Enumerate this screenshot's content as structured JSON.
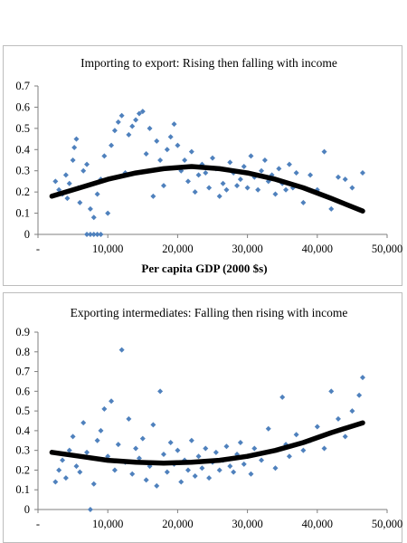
{
  "chart_data": [
    {
      "type": "scatter",
      "title": "Importing to export: Rising then falling with income",
      "xlabel": "Per capita GDP (2000 $s)",
      "ylabel": "",
      "xlim": [
        0,
        50000
      ],
      "ylim": [
        0,
        0.7
      ],
      "x_ticks": [
        "-",
        "10,000",
        "20,000",
        "30,000",
        "40,000",
        "50,000"
      ],
      "y_ticks": [
        "0",
        "0.1",
        "0.2",
        "0.3",
        "0.4",
        "0.5",
        "0.6",
        "0.7"
      ],
      "grid": false,
      "legend": "none",
      "marker_color": "#4f81bd",
      "trend_color": "#000000",
      "trend": {
        "x": [
          2000,
          6000,
          10000,
          14000,
          18000,
          22000,
          26000,
          30000,
          34000,
          38000,
          42000,
          46500
        ],
        "y": [
          0.18,
          0.22,
          0.26,
          0.29,
          0.31,
          0.32,
          0.31,
          0.29,
          0.26,
          0.22,
          0.17,
          0.11
        ]
      },
      "points": [
        [
          2500,
          0.25
        ],
        [
          3000,
          0.21
        ],
        [
          3500,
          0.19
        ],
        [
          4000,
          0.28
        ],
        [
          4200,
          0.17
        ],
        [
          4500,
          0.24
        ],
        [
          5000,
          0.35
        ],
        [
          5200,
          0.41
        ],
        [
          5500,
          0.45
        ],
        [
          5800,
          0.22
        ],
        [
          6000,
          0.15
        ],
        [
          6500,
          0.3
        ],
        [
          7000,
          0.0
        ],
        [
          7500,
          0.0
        ],
        [
          8000,
          0.0
        ],
        [
          8500,
          0.0
        ],
        [
          9000,
          0.0
        ],
        [
          7000,
          0.33
        ],
        [
          7500,
          0.12
        ],
        [
          8000,
          0.08
        ],
        [
          8500,
          0.19
        ],
        [
          9000,
          0.26
        ],
        [
          9500,
          0.37
        ],
        [
          10000,
          0.1
        ],
        [
          10500,
          0.42
        ],
        [
          11000,
          0.49
        ],
        [
          11500,
          0.53
        ],
        [
          12000,
          0.56
        ],
        [
          12500,
          0.29
        ],
        [
          13000,
          0.47
        ],
        [
          13500,
          0.51
        ],
        [
          14000,
          0.54
        ],
        [
          14500,
          0.57
        ],
        [
          15000,
          0.58
        ],
        [
          15500,
          0.38
        ],
        [
          16000,
          0.5
        ],
        [
          16500,
          0.18
        ],
        [
          17000,
          0.44
        ],
        [
          17500,
          0.35
        ],
        [
          18000,
          0.23
        ],
        [
          18500,
          0.4
        ],
        [
          19000,
          0.46
        ],
        [
          19500,
          0.52
        ],
        [
          20000,
          0.42
        ],
        [
          20500,
          0.3
        ],
        [
          21000,
          0.35
        ],
        [
          21500,
          0.25
        ],
        [
          22000,
          0.39
        ],
        [
          22500,
          0.2
        ],
        [
          23000,
          0.28
        ],
        [
          23500,
          0.33
        ],
        [
          24000,
          0.29
        ],
        [
          24500,
          0.22
        ],
        [
          25000,
          0.36
        ],
        [
          25500,
          0.31
        ],
        [
          26000,
          0.18
        ],
        [
          26500,
          0.24
        ],
        [
          27000,
          0.21
        ],
        [
          27500,
          0.34
        ],
        [
          28000,
          0.29
        ],
        [
          28500,
          0.23
        ],
        [
          29000,
          0.26
        ],
        [
          29500,
          0.32
        ],
        [
          30000,
          0.22
        ],
        [
          30500,
          0.37
        ],
        [
          31000,
          0.27
        ],
        [
          31500,
          0.21
        ],
        [
          32000,
          0.3
        ],
        [
          32500,
          0.35
        ],
        [
          33000,
          0.25
        ],
        [
          33500,
          0.28
        ],
        [
          34000,
          0.19
        ],
        [
          34500,
          0.31
        ],
        [
          35000,
          0.24
        ],
        [
          35500,
          0.21
        ],
        [
          36000,
          0.33
        ],
        [
          36500,
          0.22
        ],
        [
          37000,
          0.29
        ],
        [
          38000,
          0.15
        ],
        [
          39000,
          0.28
        ],
        [
          40000,
          0.21
        ],
        [
          41000,
          0.39
        ],
        [
          42000,
          0.12
        ],
        [
          43000,
          0.27
        ],
        [
          44000,
          0.26
        ],
        [
          45000,
          0.22
        ],
        [
          46500,
          0.29
        ]
      ]
    },
    {
      "type": "scatter",
      "title": "Exporting  intermediates: Falling then rising with income",
      "xlabel": "",
      "ylabel": "",
      "xlim": [
        0,
        50000
      ],
      "ylim": [
        0,
        0.9
      ],
      "x_ticks": [
        "-",
        "10,000",
        "20,000",
        "30,000",
        "40,000",
        "50,000"
      ],
      "y_ticks": [
        "0",
        "0.1",
        "0.2",
        "0.3",
        "0.4",
        "0.5",
        "0.6",
        "0.7",
        "0.8",
        "0.9"
      ],
      "grid": false,
      "legend": "none",
      "marker_color": "#4f81bd",
      "trend_color": "#000000",
      "trend": {
        "x": [
          2000,
          6000,
          10000,
          14000,
          18000,
          22000,
          26000,
          30000,
          34000,
          38000,
          42000,
          46500
        ],
        "y": [
          0.29,
          0.27,
          0.25,
          0.24,
          0.235,
          0.24,
          0.25,
          0.27,
          0.3,
          0.34,
          0.39,
          0.44
        ]
      },
      "points": [
        [
          2500,
          0.14
        ],
        [
          3000,
          0.2
        ],
        [
          3500,
          0.25
        ],
        [
          4000,
          0.16
        ],
        [
          4500,
          0.3
        ],
        [
          5000,
          0.37
        ],
        [
          5500,
          0.22
        ],
        [
          6000,
          0.19
        ],
        [
          6500,
          0.44
        ],
        [
          7000,
          0.29
        ],
        [
          7500,
          0.0
        ],
        [
          8000,
          0.13
        ],
        [
          8500,
          0.35
        ],
        [
          9000,
          0.4
        ],
        [
          9500,
          0.51
        ],
        [
          10000,
          0.27
        ],
        [
          10500,
          0.55
        ],
        [
          11000,
          0.2
        ],
        [
          11500,
          0.33
        ],
        [
          12000,
          0.81
        ],
        [
          12500,
          0.24
        ],
        [
          13000,
          0.46
        ],
        [
          13500,
          0.18
        ],
        [
          14000,
          0.31
        ],
        [
          14500,
          0.26
        ],
        [
          15000,
          0.36
        ],
        [
          15500,
          0.15
        ],
        [
          16000,
          0.22
        ],
        [
          16500,
          0.43
        ],
        [
          17000,
          0.12
        ],
        [
          17500,
          0.6
        ],
        [
          18000,
          0.28
        ],
        [
          18500,
          0.19
        ],
        [
          19000,
          0.34
        ],
        [
          19500,
          0.23
        ],
        [
          20000,
          0.3
        ],
        [
          20500,
          0.14
        ],
        [
          21000,
          0.25
        ],
        [
          21500,
          0.2
        ],
        [
          22000,
          0.35
        ],
        [
          22500,
          0.17
        ],
        [
          23000,
          0.27
        ],
        [
          23500,
          0.21
        ],
        [
          24000,
          0.31
        ],
        [
          24500,
          0.16
        ],
        [
          25000,
          0.24
        ],
        [
          25500,
          0.29
        ],
        [
          26000,
          0.2
        ],
        [
          26500,
          0.25
        ],
        [
          27000,
          0.32
        ],
        [
          27500,
          0.22
        ],
        [
          28000,
          0.19
        ],
        [
          28500,
          0.28
        ],
        [
          29000,
          0.34
        ],
        [
          29500,
          0.23
        ],
        [
          30000,
          0.27
        ],
        [
          30500,
          0.18
        ],
        [
          31000,
          0.31
        ],
        [
          32000,
          0.25
        ],
        [
          33000,
          0.41
        ],
        [
          34000,
          0.21
        ],
        [
          35000,
          0.57
        ],
        [
          35500,
          0.33
        ],
        [
          36000,
          0.27
        ],
        [
          37000,
          0.38
        ],
        [
          38000,
          0.3
        ],
        [
          39000,
          0.35
        ],
        [
          40000,
          0.42
        ],
        [
          41000,
          0.31
        ],
        [
          42000,
          0.6
        ],
        [
          43000,
          0.46
        ],
        [
          44000,
          0.37
        ],
        [
          45000,
          0.5
        ],
        [
          46000,
          0.58
        ],
        [
          46500,
          0.67
        ]
      ]
    }
  ]
}
